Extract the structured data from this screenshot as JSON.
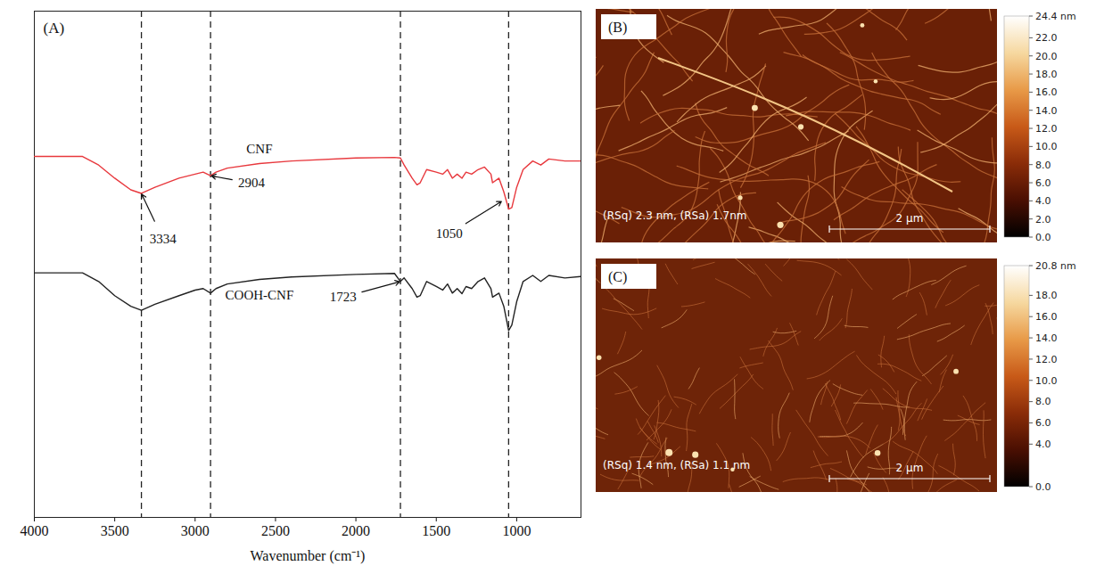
{
  "chart_data": [
    {
      "type": "line",
      "title": "(A)",
      "x_label": "Wavenumber (cm⁻¹)",
      "x": [
        4000,
        3700,
        3600,
        3500,
        3400,
        3334,
        3250,
        3100,
        3000,
        2950,
        2904,
        2870,
        2800,
        2600,
        2400,
        2000,
        1760,
        1723,
        1700,
        1650,
        1620,
        1600,
        1560,
        1500,
        1460,
        1430,
        1400,
        1370,
        1340,
        1315,
        1280,
        1240,
        1200,
        1160,
        1150,
        1110,
        1080,
        1050,
        1030,
        1000,
        960,
        900,
        850,
        800,
        700,
        600
      ],
      "series": [
        {
          "name": "CNF",
          "color": "#e8383d",
          "line_style": "solid",
          "values": [
            71.3,
            71.3,
            69.6,
            67.0,
            64.7,
            64.0,
            65.2,
            67.0,
            67.8,
            68.2,
            67.5,
            68.2,
            69.0,
            69.9,
            70.4,
            71.0,
            71.1,
            71.0,
            69.6,
            67.0,
            65.7,
            66.1,
            68.7,
            68.2,
            67.8,
            68.7,
            67.0,
            67.8,
            67.0,
            68.2,
            67.8,
            68.7,
            69.2,
            67.8,
            66.1,
            67.0,
            64.3,
            60.9,
            61.2,
            65.2,
            68.7,
            70.4,
            69.6,
            70.8,
            70.4,
            70.4
          ]
        },
        {
          "name": "COOH-CNF",
          "color": "#222222",
          "line_style": "solid",
          "values": [
            48.3,
            48.3,
            46.6,
            43.8,
            41.7,
            40.9,
            42.1,
            43.8,
            44.9,
            45.2,
            44.3,
            45.2,
            46.1,
            47.0,
            47.5,
            48.0,
            48.2,
            46.6,
            47.3,
            45.2,
            43.5,
            43.8,
            46.6,
            45.6,
            44.9,
            46.1,
            44.3,
            45.2,
            44.2,
            45.6,
            45.2,
            46.6,
            47.3,
            45.2,
            43.5,
            44.3,
            41.7,
            36.9,
            38.0,
            42.6,
            46.6,
            47.8,
            46.6,
            47.8,
            47.3,
            47.6
          ]
        }
      ],
      "xlim": [
        4000,
        600
      ],
      "xticks": [
        4000,
        3500,
        3000,
        2500,
        2000,
        1500,
        1000
      ],
      "ylim": [
        0,
        100
      ],
      "tick_labels": "x",
      "grid": false,
      "vlines": [
        3334,
        2904,
        1723,
        1050
      ],
      "annotations": [
        {
          "text": "3334",
          "x": 3334,
          "y": 64.0,
          "text_x": 3200,
          "text_y": 55
        },
        {
          "text": "2904",
          "x": 2904,
          "y": 67.5,
          "text_x": 2650,
          "text_y": 66
        },
        {
          "text": "1050",
          "x": 1090,
          "y": 62.5,
          "text_x": 1420,
          "text_y": 56
        },
        {
          "text": "1723",
          "x": 1723,
          "y": 46.6,
          "text_x": 2080,
          "text_y": 43.5
        }
      ]
    },
    {
      "type": "image",
      "title": "(B)",
      "caption": "(RSq) 2.3 nm, (RSa) 1.7nm",
      "scale_bar": "2 μm",
      "colorbar": {
        "range": [
          0,
          24.4
        ],
        "ticks": [
          {
            "value": 0,
            "label": "0.0"
          },
          {
            "value": 2,
            "label": "2.0"
          },
          {
            "value": 4,
            "label": "4.0"
          },
          {
            "value": 6,
            "label": "6.0"
          },
          {
            "value": 8,
            "label": "8.0"
          },
          {
            "value": 10,
            "label": "10.0"
          },
          {
            "value": 12,
            "label": "12.0"
          },
          {
            "value": 14,
            "label": "14.0"
          },
          {
            "value": 16,
            "label": "16.0"
          },
          {
            "value": 18,
            "label": "18.0"
          },
          {
            "value": 20,
            "label": "20.0"
          },
          {
            "value": 22,
            "label": "22.0"
          },
          {
            "value": 24.4,
            "label": "24.4 nm"
          }
        ]
      }
    },
    {
      "type": "image",
      "title": "(C)",
      "caption": "(RSq) 1.4 nm, (RSa) 1.1 nm",
      "scale_bar": "2 μm",
      "colorbar": {
        "range": [
          0,
          20.8
        ],
        "ticks": [
          {
            "value": 0,
            "label": "0.0"
          },
          {
            "value": 4,
            "label": "4.0"
          },
          {
            "value": 6,
            "label": "6.0"
          },
          {
            "value": 8,
            "label": "8.0"
          },
          {
            "value": 10,
            "label": "10.0"
          },
          {
            "value": 12,
            "label": "12.0"
          },
          {
            "value": 14,
            "label": "14.0"
          },
          {
            "value": 16,
            "label": "16.0"
          },
          {
            "value": 18,
            "label": "18.0"
          },
          {
            "value": 20.8,
            "label": "20.8 nm"
          }
        ]
      }
    }
  ]
}
